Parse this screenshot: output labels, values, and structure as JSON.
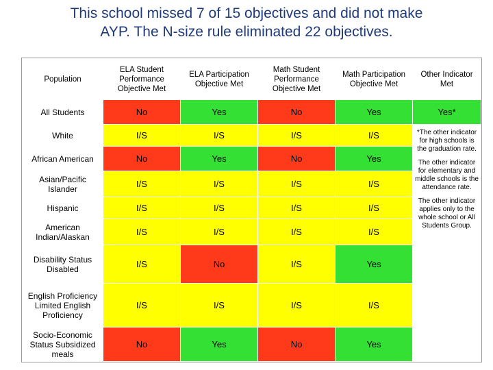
{
  "title": {
    "line1": "This school missed 7 of 15 objectives and did not make",
    "line2": "AYP. The N-size rule eliminated 22 objectives."
  },
  "headers": {
    "population": "Population",
    "ela_perf": "ELA Student Performance Objective Met",
    "ela_part": "ELA Participation Objective Met",
    "math_perf": "Math Student Performance Objective Met",
    "math_part": "Math Participation Objective Met",
    "other": "Other Indicator Met"
  },
  "rows": [
    {
      "label": "All Students",
      "values": [
        "No",
        "Yes",
        "No",
        "Yes"
      ],
      "other": "Yes*"
    },
    {
      "label": "White",
      "values": [
        "I/S",
        "I/S",
        "I/S",
        "I/S"
      ]
    },
    {
      "label": "African American",
      "values": [
        "No",
        "Yes",
        "No",
        "Yes"
      ]
    },
    {
      "label": "Asian/Pacific Islander",
      "values": [
        "I/S",
        "I/S",
        "I/S",
        "I/S"
      ]
    },
    {
      "label": "Hispanic",
      "values": [
        "I/S",
        "I/S",
        "I/S",
        "I/S"
      ]
    },
    {
      "label": "American Indian/Alaskan",
      "values": [
        "I/S",
        "I/S",
        "I/S",
        "I/S"
      ]
    },
    {
      "label": "Disability Status Disabled",
      "values": [
        "I/S",
        "No",
        "I/S",
        "Yes"
      ]
    },
    {
      "label": "English Proficiency Limited English Proficiency",
      "values": [
        "I/S",
        "I/S",
        "I/S",
        "I/S"
      ]
    },
    {
      "label": "Socio-Economic Status Subsidized meals",
      "values": [
        "No",
        "Yes",
        "No",
        "Yes"
      ]
    }
  ],
  "notes": {
    "note1": "*The other indicator for high schools is the graduation rate.",
    "note2": "The other indicator for elementary and middle schools is the attendance rate.",
    "note3": "The other indicator applies only to the whole school or All Students Group."
  },
  "colors": {
    "no": "#ff3a1a",
    "yes": "#33e033",
    "insufficient": "#ffff00",
    "title": "#1f3a7a"
  }
}
